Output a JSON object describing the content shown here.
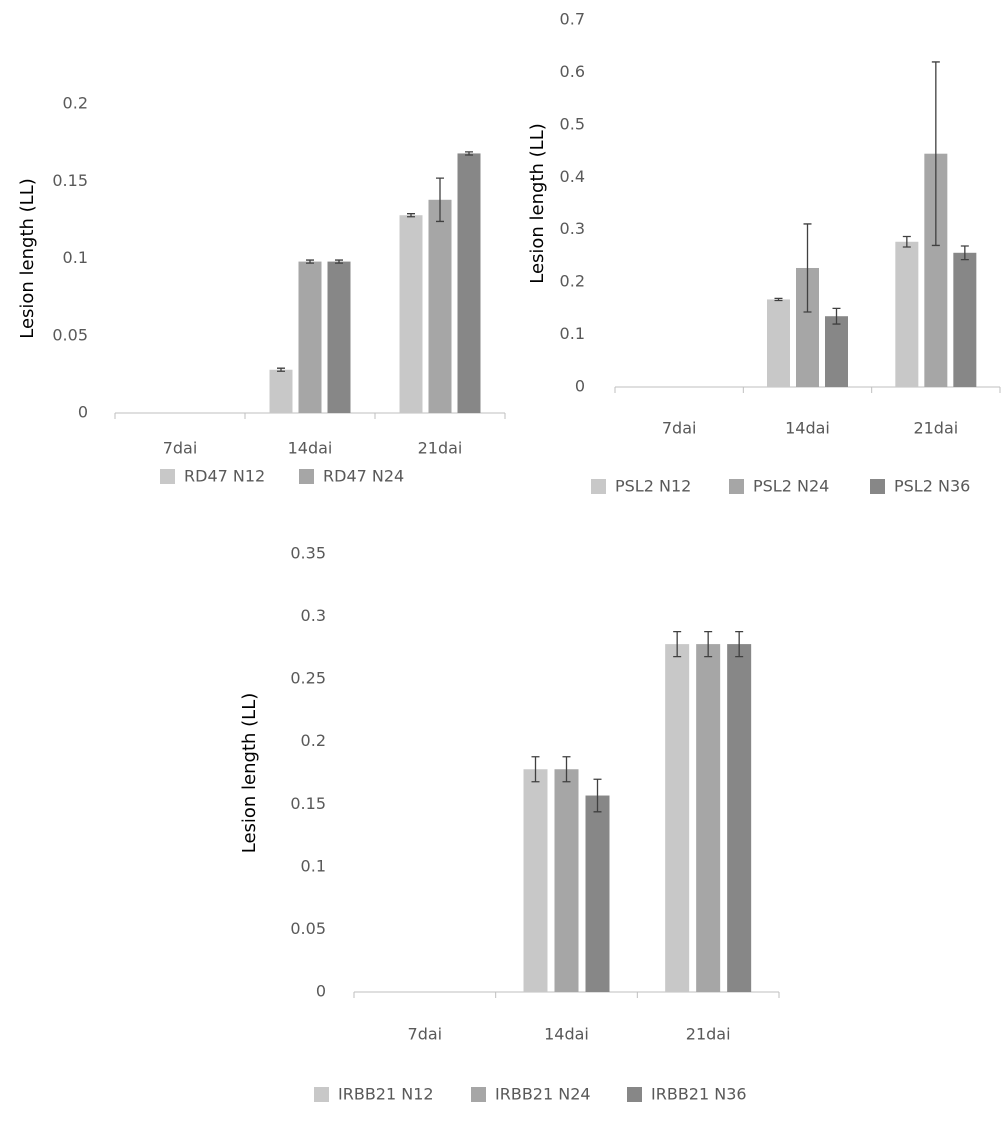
{
  "chart_data": [
    {
      "type": "bar",
      "y_label": "Lesion length (LL)",
      "categories": [
        "7dai",
        "14dai",
        "21dai"
      ],
      "ylim": [
        0,
        0.2
      ],
      "yticks": [
        0,
        0.05,
        0.1,
        0.15,
        0.2
      ],
      "series": [
        {
          "name": "RD47 N12",
          "color": "#c8c8c8",
          "values": [
            0,
            0.028,
            0.128
          ],
          "errors": [
            0,
            0.001,
            0.001
          ]
        },
        {
          "name": "RD47 N24",
          "color": "#a6a6a6",
          "values": [
            0,
            0.098,
            0.138
          ],
          "errors": [
            0,
            0.001,
            0.014
          ]
        },
        {
          "color": "#878787",
          "values": [
            0,
            0.098,
            0.168
          ],
          "errors": [
            0,
            0.001,
            0.001
          ]
        }
      ]
    },
    {
      "type": "bar",
      "y_label": "Lesion length (LL)",
      "categories": [
        "7dai",
        "14dai",
        "21dai"
      ],
      "ylim": [
        0,
        0.7
      ],
      "yticks": [
        0,
        0.1,
        0.2,
        0.3,
        0.4,
        0.5,
        0.6,
        0.7
      ],
      "series": [
        {
          "name": "PSL2 N12",
          "color": "#c8c8c8",
          "values": [
            0,
            0.167,
            0.277
          ],
          "errors": [
            0,
            0.002,
            0.01
          ]
        },
        {
          "name": "PSL2 N24",
          "color": "#a6a6a6",
          "values": [
            0,
            0.227,
            0.445
          ],
          "errors": [
            0,
            0.084,
            0.175
          ]
        },
        {
          "name": "PSL2 N36",
          "color": "#878787",
          "values": [
            0,
            0.135,
            0.256
          ],
          "errors": [
            0,
            0.015,
            0.013
          ]
        }
      ]
    },
    {
      "type": "bar",
      "y_label": "Lesion length (LL)",
      "categories": [
        "7dai",
        "14dai",
        "21dai"
      ],
      "ylim": [
        0,
        0.35
      ],
      "yticks": [
        0,
        0.05,
        0.1,
        0.15,
        0.2,
        0.25,
        0.3,
        0.35
      ],
      "series": [
        {
          "name": "IRBB21 N12",
          "color": "#c8c8c8",
          "values": [
            0,
            0.178,
            0.278
          ],
          "errors": [
            0,
            0.01,
            0.01
          ]
        },
        {
          "name": "IRBB21 N24",
          "color": "#a6a6a6",
          "values": [
            0,
            0.178,
            0.278
          ],
          "errors": [
            0,
            0.01,
            0.01
          ]
        },
        {
          "name": "IRBB21 N36",
          "color": "#878787",
          "values": [
            0,
            0.157,
            0.278
          ],
          "errors": [
            0,
            0.013,
            0.01
          ]
        }
      ]
    }
  ]
}
